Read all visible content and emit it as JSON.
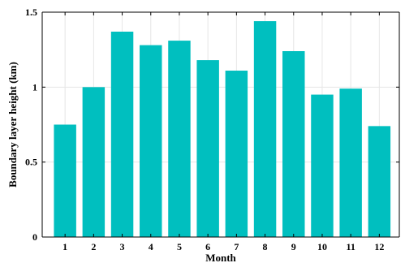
{
  "chart_data": {
    "type": "bar",
    "categories": [
      "1",
      "2",
      "3",
      "4",
      "5",
      "6",
      "7",
      "8",
      "9",
      "10",
      "11",
      "12"
    ],
    "values": [
      0.75,
      1.0,
      1.37,
      1.28,
      1.31,
      1.18,
      1.11,
      1.44,
      1.24,
      0.95,
      0.99,
      0.74
    ],
    "title": "",
    "xlabel": "Month",
    "ylabel": "Boundary layer height (km)",
    "ylim": [
      0,
      1.5
    ],
    "yticks": [
      "0",
      "0.5",
      "1",
      "1.5"
    ],
    "bar_color": "#00BFBF",
    "grid": true,
    "legend": "none"
  }
}
